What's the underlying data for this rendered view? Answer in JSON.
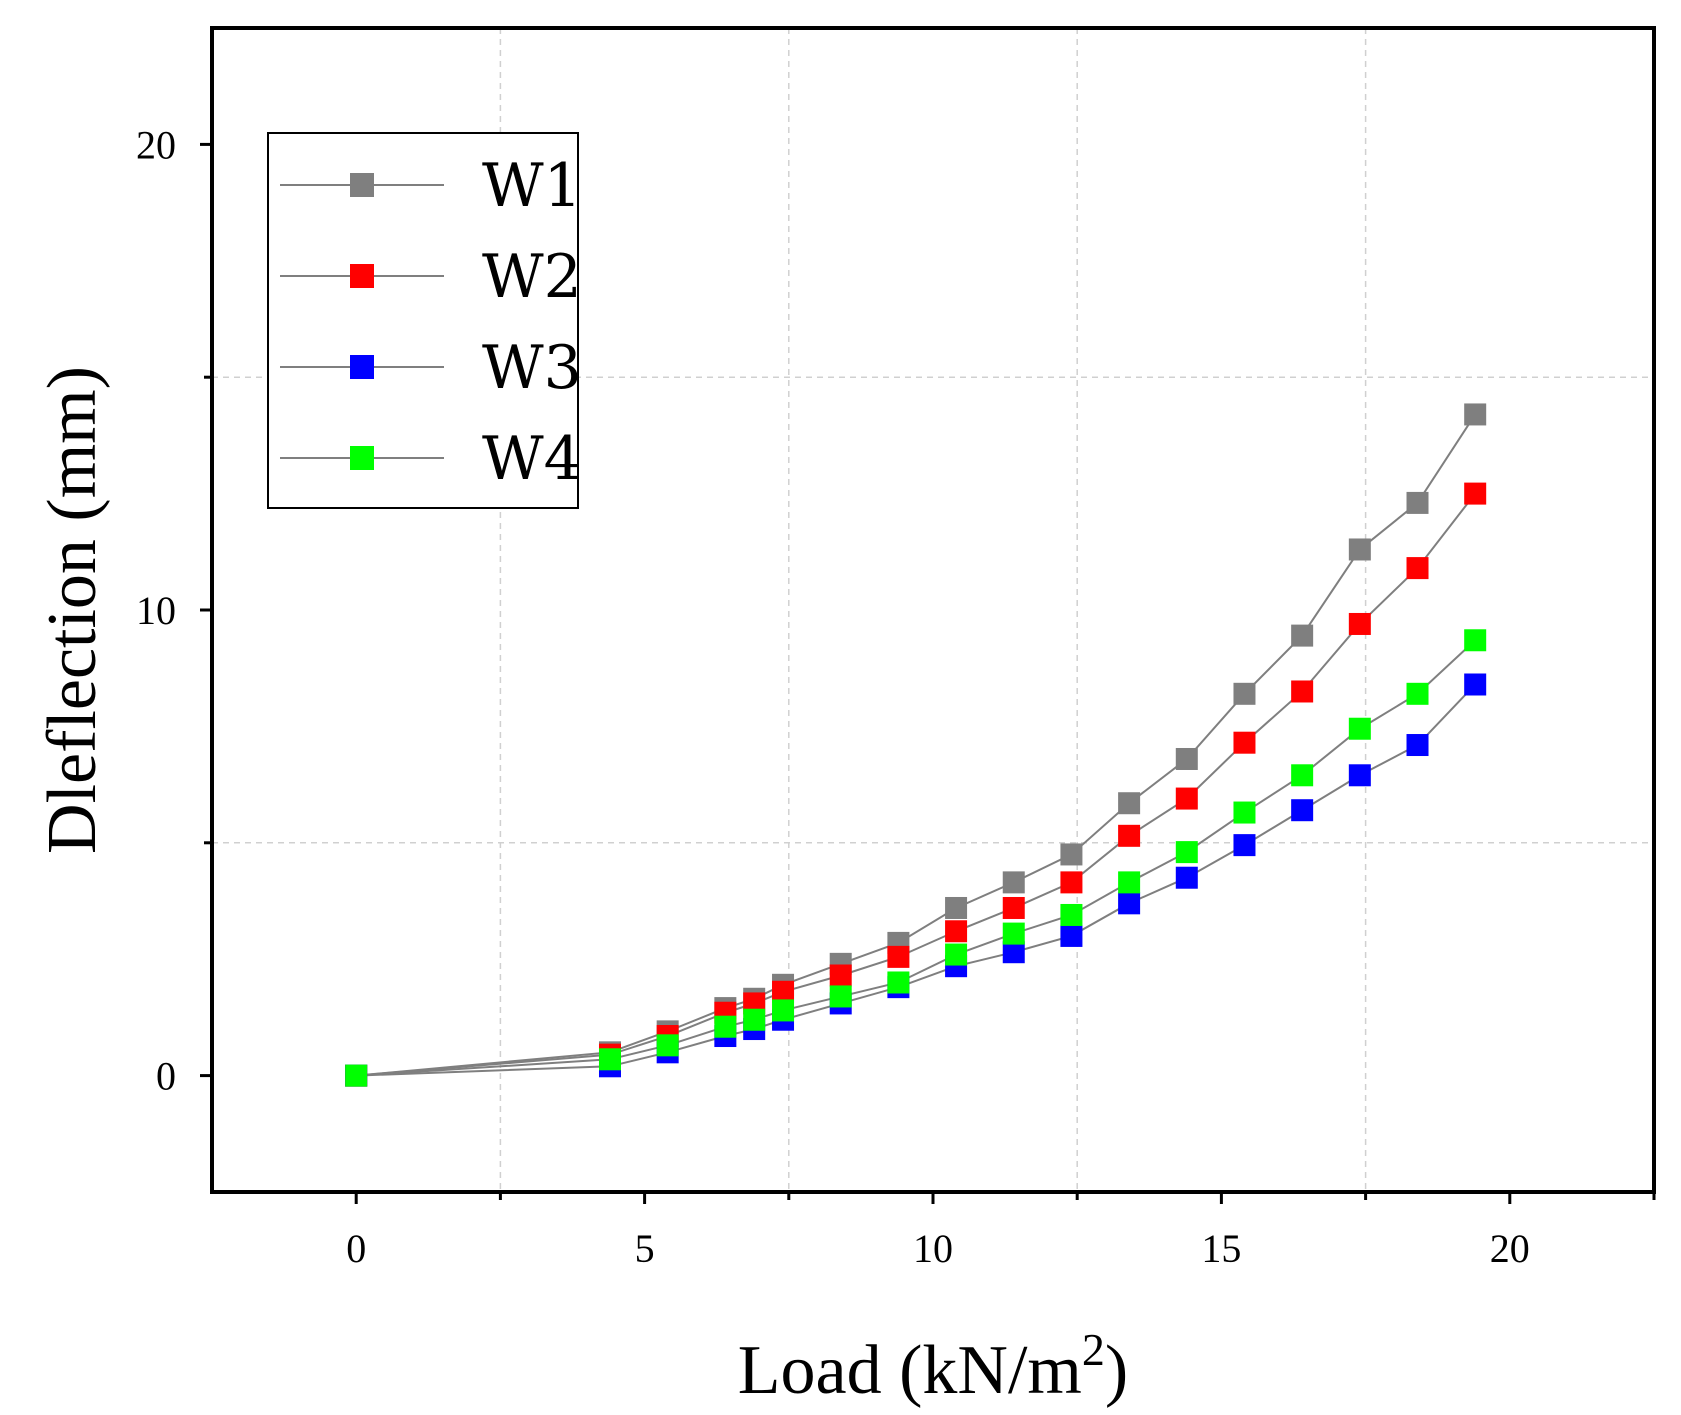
{
  "chart_data": {
    "type": "line",
    "title": "",
    "xlabel": "Load (kN/m",
    "xlabel_sup": "2",
    "xlabel_close": ")",
    "ylabel": "Dleflection (mm)",
    "xlim": [
      -2.5,
      22.5
    ],
    "ylim": [
      -2.5,
      22.5
    ],
    "x_ticks": [
      0,
      5,
      10,
      15,
      20
    ],
    "x_tick_labels": [
      "0",
      "5",
      "10",
      "15",
      "20"
    ],
    "x_minor_ticks": [
      2.5,
      7.5,
      12.5,
      17.5,
      22.5
    ],
    "y_ticks": [
      0,
      10,
      20
    ],
    "y_tick_labels": [
      "0",
      "10",
      "20"
    ],
    "y_minor_ticks": [
      5,
      15
    ],
    "grid": true,
    "legend_position": "top-left",
    "x": [
      0,
      4.4,
      5.4,
      6.4,
      6.9,
      7.4,
      8.4,
      9.4,
      10.4,
      11.4,
      12.4,
      13.4,
      14.4,
      15.4,
      16.4,
      17.4,
      18.4,
      19.4
    ],
    "series": [
      {
        "name": "W1",
        "color": "#7f7f7f",
        "values": [
          0,
          0.5,
          0.95,
          1.45,
          1.65,
          1.95,
          2.4,
          2.85,
          3.6,
          4.15,
          4.75,
          5.85,
          6.8,
          8.2,
          9.45,
          11.3,
          12.3,
          14.2
        ]
      },
      {
        "name": "W2",
        "color": "#ff0000",
        "values": [
          0,
          0.45,
          0.85,
          1.35,
          1.55,
          1.8,
          2.15,
          2.55,
          3.1,
          3.6,
          4.15,
          5.15,
          5.95,
          7.15,
          8.25,
          9.7,
          10.9,
          12.5
        ]
      },
      {
        "name": "W3",
        "color": "#0000ff",
        "values": [
          0,
          0.2,
          0.5,
          0.85,
          1.0,
          1.2,
          1.55,
          1.9,
          2.35,
          2.65,
          3.0,
          3.7,
          4.25,
          4.95,
          5.7,
          6.45,
          7.1,
          8.4
        ]
      },
      {
        "name": "W4",
        "color": "#00ff00",
        "values": [
          0,
          0.35,
          0.65,
          1.05,
          1.2,
          1.4,
          1.7,
          2.0,
          2.6,
          3.05,
          3.45,
          4.15,
          4.8,
          5.65,
          6.45,
          7.45,
          8.2,
          9.35
        ]
      }
    ],
    "line_color": "#7f7f7f"
  }
}
